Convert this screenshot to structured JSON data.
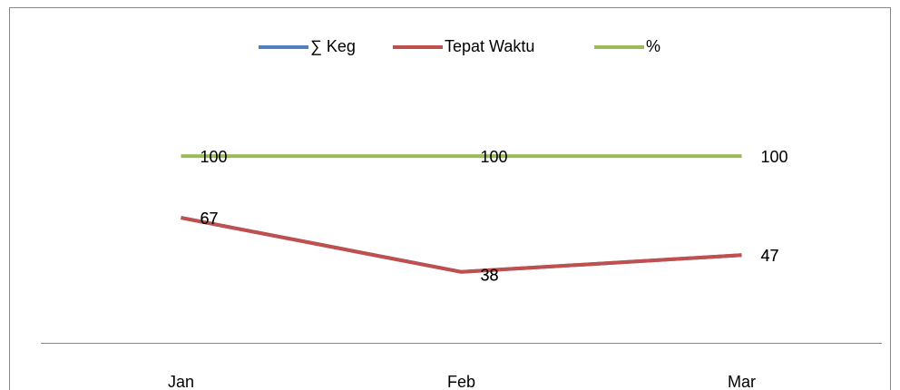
{
  "chart_data": {
    "type": "line",
    "categories": [
      "Jan",
      "Feb",
      "Mar"
    ],
    "series": [
      {
        "name": "∑ Keg",
        "color": "#4f81bd",
        "values": [
          67,
          38,
          47
        ]
      },
      {
        "name": "Tepat Waktu",
        "color": "#c0504d",
        "values": [
          67,
          38,
          47
        ]
      },
      {
        "name": "%",
        "color": "#9bbb59",
        "values": [
          100,
          100,
          100
        ]
      }
    ],
    "ylim": [
      0,
      120
    ],
    "legend": "top"
  }
}
